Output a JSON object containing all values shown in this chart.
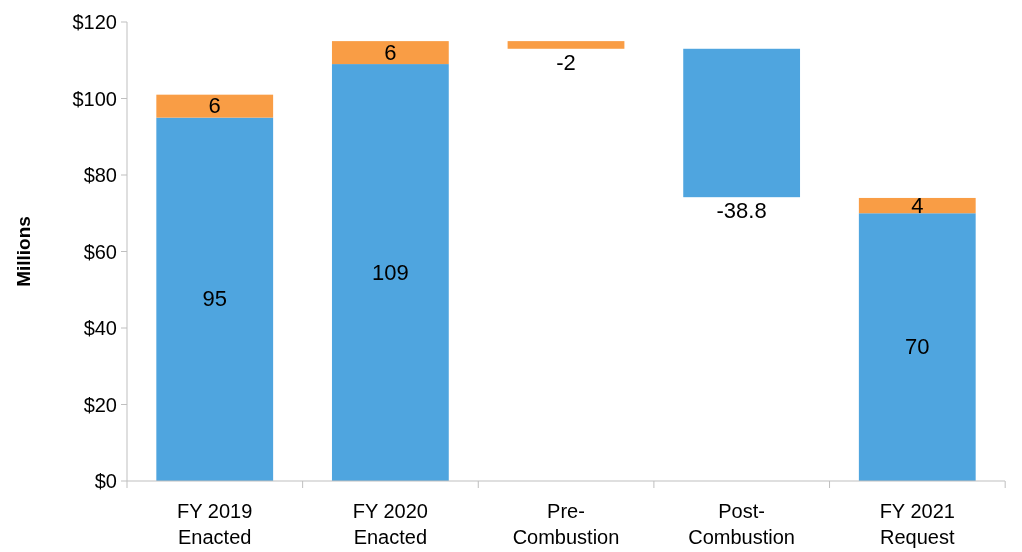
{
  "chart_data": {
    "type": "bar",
    "stacked": true,
    "ylabel": "Millions",
    "categories": [
      "FY 2019 Enacted",
      "FY 2020 Enacted",
      "Pre-Combustion",
      "Post-Combustion",
      "FY 2021 Request"
    ],
    "series": [
      {
        "color": "#4fa5df",
        "values": [
          95,
          109,
          null,
          -38.8,
          70
        ],
        "base": [
          0,
          0,
          null,
          113,
          0
        ]
      },
      {
        "color": "#f99d45",
        "values": [
          6,
          6,
          -2,
          null,
          4
        ],
        "base": [
          95,
          109,
          115,
          null,
          70
        ]
      }
    ],
    "ylim": [
      0,
      120
    ],
    "yticks": [
      {
        "value": 0,
        "label": "$0"
      },
      {
        "value": 20,
        "label": "$20"
      },
      {
        "value": 40,
        "label": "$40"
      },
      {
        "value": 60,
        "label": "$60"
      },
      {
        "value": 80,
        "label": "$80"
      },
      {
        "value": 100,
        "label": "$100"
      },
      {
        "value": 120,
        "label": "$120"
      }
    ],
    "data_labels": true,
    "grid": false
  }
}
